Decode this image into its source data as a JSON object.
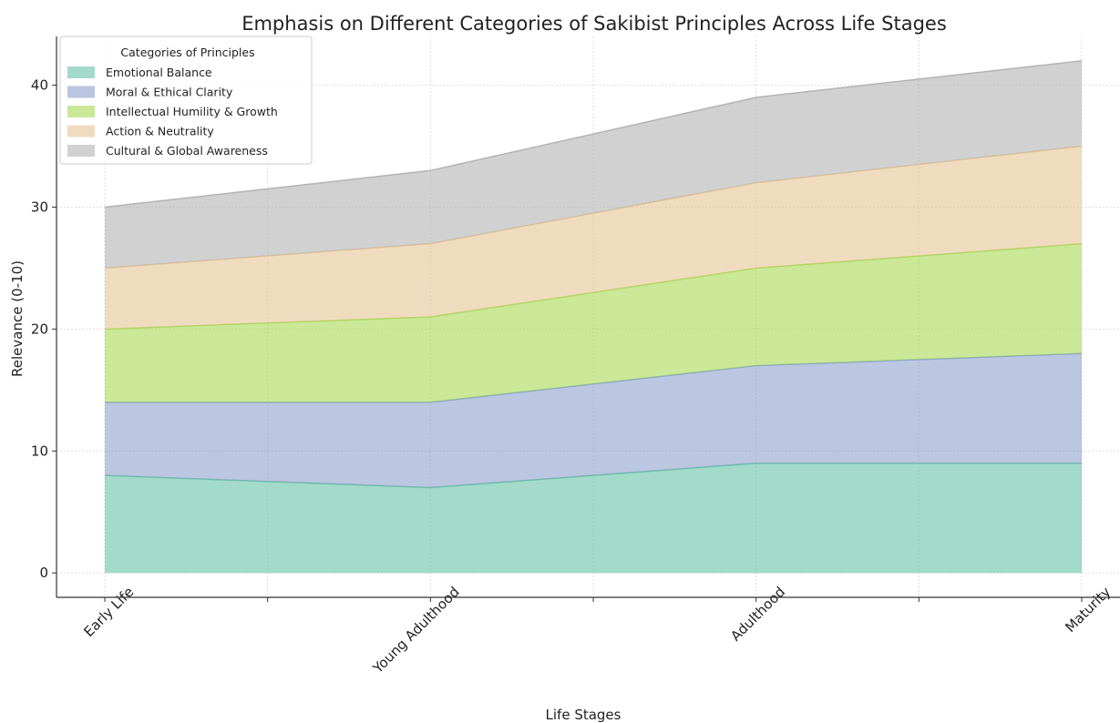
{
  "chart_data": {
    "type": "area",
    "stacked": true,
    "title": "Emphasis on Different Categories of Sakibist Principles Across Life Stages",
    "xlabel": "Life Stages",
    "ylabel": "Relevance (0-10)",
    "categories": [
      "Early Life",
      "Young Adulthood",
      "Adulthood",
      "Maturity"
    ],
    "ylim": [
      -2,
      44
    ],
    "yticks": [
      0,
      10,
      20,
      30,
      40
    ],
    "grid": true,
    "legend": {
      "title": "Categories of Principles",
      "position": "top-left"
    },
    "series": [
      {
        "name": "Emotional Balance",
        "values": [
          8,
          7,
          9,
          9
        ],
        "color": "#66c2a5"
      },
      {
        "name": "Moral & Ethical Clarity",
        "values": [
          6,
          7,
          8,
          9
        ],
        "color": "#8da0cb"
      },
      {
        "name": "Intellectual Humility & Growth",
        "values": [
          6,
          7,
          8,
          9
        ],
        "color": "#a6d854"
      },
      {
        "name": "Action & Neutrality",
        "values": [
          5,
          6,
          7,
          8
        ],
        "color": "#e5c494"
      },
      {
        "name": "Cultural & Global Awareness",
        "values": [
          5,
          6,
          7,
          7
        ],
        "color": "#b3b3b3"
      }
    ]
  }
}
